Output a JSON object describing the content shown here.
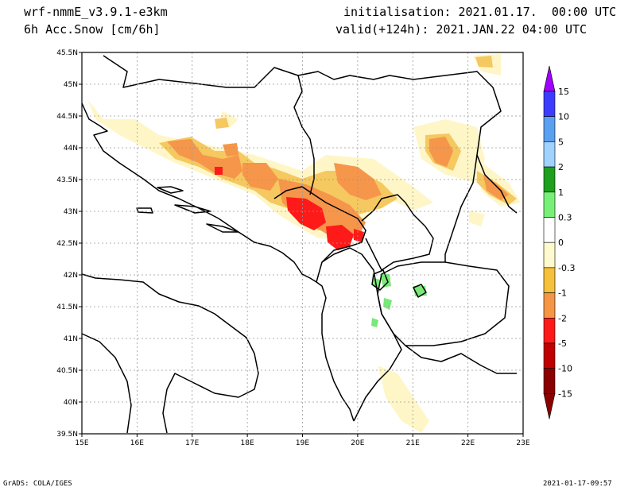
{
  "header": {
    "model": "wrf-nmmE_v3.9.1-e3km",
    "field": "6h Acc.Snow [cm/6h]",
    "init": "initialisation: 2021.01.17.  00:00 UTC",
    "valid": "valid(+124h): 2021.JAN.22 04:00 UTC"
  },
  "footer": {
    "credit": "GrADS: COLA/IGES",
    "timestamp": "2021-01-17-09:57"
  },
  "map": {
    "lon_ticks": [
      "15E",
      "16E",
      "17E",
      "18E",
      "19E",
      "20E",
      "21E",
      "22E",
      "23E"
    ],
    "lat_ticks": [
      "45.5N",
      "45N",
      "44.5N",
      "44N",
      "43.5N",
      "43N",
      "42.5N",
      "42N",
      "41.5N",
      "41N",
      "40.5N",
      "40N",
      "39.5N"
    ]
  },
  "colorbar": {
    "levels": [
      "15",
      "10",
      "5",
      "2",
      "1",
      "0.3",
      "0",
      "-0.3",
      "-1",
      "-2",
      "-5",
      "-10",
      "-15"
    ],
    "colors": [
      "#a000ff",
      "#3c3cff",
      "#5aa0f0",
      "#a0d2ff",
      "#1ea01e",
      "#78f078",
      "#ffffff",
      "#fffacd",
      "#f5c03c",
      "#f59646",
      "#ff1a1a",
      "#c00000",
      "#8b0000"
    ]
  },
  "snow_colors": {
    "light": "#fff6c8",
    "mid": "#f5c860",
    "heavy": "#f5964a",
    "max": "#ff1a1a",
    "green": "#78e878"
  }
}
